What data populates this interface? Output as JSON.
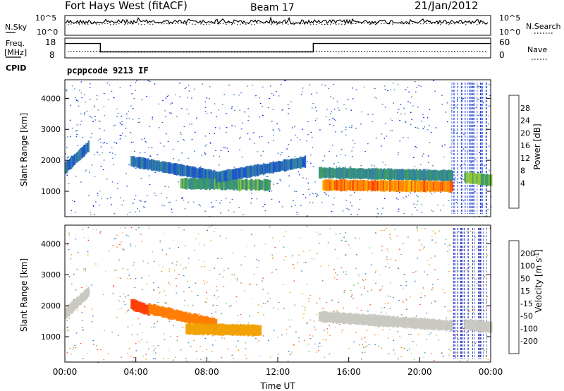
{
  "header": {
    "station": "Fort Hays West (fitACF)",
    "beam": "Beam 17",
    "date": "21/Jan/2012"
  },
  "noise_panel": {
    "left_label": "N.Sky",
    "left_ticks": [
      "10^5",
      "10^0"
    ],
    "right_label": "N.Search",
    "right_ticks": [
      "10^5",
      "10^0"
    ]
  },
  "freq_panel": {
    "left_label_1": "Freq.",
    "left_label_2": "[MHz]",
    "left_ticks": [
      "18",
      "8"
    ],
    "right_label": "Nave",
    "right_ticks": [
      "60",
      "0"
    ],
    "freq_steps": [
      {
        "t0": 0.0,
        "t1": 2.0,
        "mhz": 16.2
      },
      {
        "t0": 2.0,
        "t1": 14.0,
        "mhz": 10.2
      },
      {
        "t0": 14.0,
        "t1": 24.0,
        "mhz": 16.2
      }
    ]
  },
  "cpid": {
    "label": "CPID",
    "text": "pcppcode 9213 IF"
  },
  "chart_data": [
    {
      "type": "heatmap",
      "name": "power",
      "ylabel": "Slant Range [km]",
      "yticks": [
        "4000",
        "3000",
        "2000",
        "1000"
      ],
      "ylim": [
        180,
        4600
      ],
      "xlim": [
        0,
        24
      ],
      "colorbar": {
        "label": "Power [dB]",
        "ticks": [
          "28",
          "24",
          "20",
          "16",
          "12",
          "8",
          "4"
        ],
        "colors": [
          "#0000ff",
          "#1a52c8",
          "#2e7fa0",
          "#3a9a62",
          "#8fc43a",
          "#f2c000",
          "#ff8400",
          "#ff3000",
          "#ff0000"
        ]
      },
      "echo_regions": [
        {
          "t0": 0.0,
          "t1": 1.3,
          "r_start": 1750,
          "r_end": 2450,
          "value": 8
        },
        {
          "t0": 3.7,
          "t1": 8.5,
          "r_start": 1970,
          "r_end": 1480,
          "value": 8
        },
        {
          "t0": 6.5,
          "t1": 11.5,
          "r_start": 1250,
          "r_end": 1200,
          "value": 14
        },
        {
          "t0": 8.5,
          "t1": 13.5,
          "r_start": 1450,
          "r_end": 1950,
          "value": 8
        },
        {
          "t0": 14.3,
          "t1": 21.8,
          "r_start": 1600,
          "r_end": 1500,
          "value": 12
        },
        {
          "t0": 14.5,
          "t1": 21.8,
          "r_start": 1200,
          "r_end": 1150,
          "value": 26
        },
        {
          "t0": 22.5,
          "t1": 24.0,
          "r_start": 1450,
          "r_end": 1350,
          "value": 16
        }
      ]
    },
    {
      "type": "heatmap",
      "name": "velocity",
      "ylabel": "Slant Range [km]",
      "yticks": [
        "4000",
        "3000",
        "2000",
        "1000"
      ],
      "ylim": [
        180,
        4600
      ],
      "xlim": [
        0,
        24
      ],
      "xticks": [
        "00:00",
        "04:00",
        "08:00",
        "12:00",
        "16:00",
        "20:00",
        "00:00"
      ],
      "xlabel": "Time UT",
      "colorbar": {
        "label": "Velocity [m s^-1]",
        "ticks": [
          "200",
          "100",
          "50",
          "15",
          "-15",
          "-50",
          "-100",
          "-200"
        ],
        "colors": [
          "#1030b8",
          "#2a64c0",
          "#3c8a8a",
          "#6cc04a",
          "#c8c8c0",
          "#f2a000",
          "#ff7a00",
          "#ff3800",
          "#ff0000"
        ]
      },
      "echo_regions": [
        {
          "t0": 0.0,
          "t1": 1.3,
          "r_start": 1750,
          "r_end": 2450,
          "value": 0
        },
        {
          "t0": 3.7,
          "t1": 4.7,
          "r_start": 2050,
          "r_end": 1850,
          "value": -150
        },
        {
          "t0": 4.7,
          "t1": 8.5,
          "r_start": 1900,
          "r_end": 1400,
          "value": -60
        },
        {
          "t0": 6.8,
          "t1": 11.0,
          "r_start": 1250,
          "r_end": 1200,
          "value": -40
        },
        {
          "t0": 14.3,
          "t1": 21.8,
          "r_start": 1650,
          "r_end": 1350,
          "value": 0
        },
        {
          "t0": 22.5,
          "t1": 24.0,
          "r_start": 1400,
          "r_end": 1300,
          "value": 0
        }
      ]
    }
  ]
}
